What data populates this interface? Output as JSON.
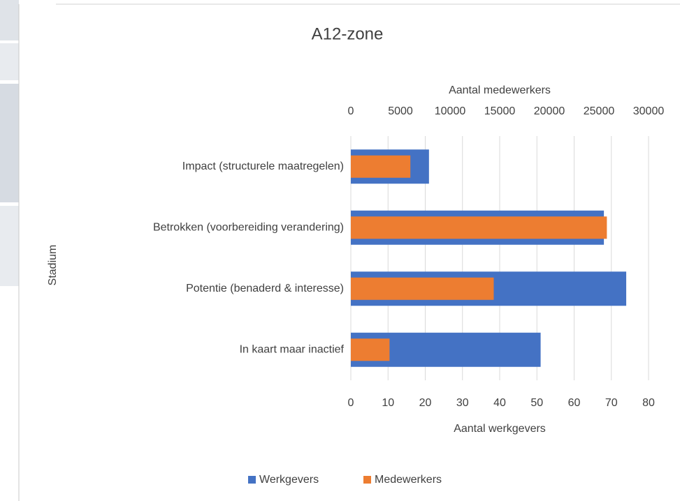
{
  "chart_data": {
    "type": "bar",
    "orientation": "horizontal",
    "title": "A12-zone",
    "categories": [
      "Impact (structurele maatregelen)",
      "Betrokken (voorbereiding verandering)",
      "Potentie (benaderd & interesse)",
      "In kaart maar inactief"
    ],
    "series": [
      {
        "name": "Werkgevers",
        "color": "#4472c4",
        "axis": "x",
        "values": [
          21,
          68,
          74,
          51
        ]
      },
      {
        "name": "Medewerkers",
        "color": "#ed7d31",
        "axis": "x2",
        "values": [
          6000,
          25800,
          14400,
          3900
        ]
      }
    ],
    "xlabel": "Aantal werkgevers",
    "x2label": "Aantal medewerkers",
    "ylabel": "Stadium",
    "xlim": [
      0,
      80
    ],
    "xticks": [
      0,
      10,
      20,
      30,
      40,
      50,
      60,
      70,
      80
    ],
    "x2lim": [
      0,
      30000
    ],
    "x2ticks": [
      0,
      5000,
      10000,
      15000,
      20000,
      25000,
      30000
    ],
    "grid": true,
    "legend": "bottom"
  }
}
